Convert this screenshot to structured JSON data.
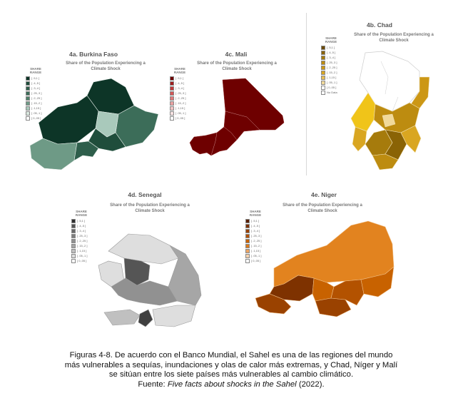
{
  "legend_title": "SHARE RANGE",
  "subtitle": "Share of the Population Experiencing a Climate Shock",
  "panels": {
    "burkina": {
      "title": "4a.  Burkina Faso",
      "legend": [
        "[ .5,1 ]",
        "[ .4,.5 ]",
        "[ .3,.4 ]",
        "[ .25,.3 ]",
        "[ .2,.25 ]",
        "[ .15,.2 ]",
        "[ .1,15 ]",
        "[ .05,.1 ]",
        "[ 0,.05 ]"
      ],
      "colors": [
        "#0d3527",
        "#1f4d3b",
        "#2e5e4b",
        "#3c6d59",
        "#4f8069",
        "#6e9a86",
        "#a9c9bb",
        "#d9e7df",
        "#ffffff"
      ]
    },
    "mali": {
      "title": "4c. Mali",
      "legend": [
        "[ .5,1 ]",
        "[ .4,.5 ]",
        "[ .3,.4 ]",
        "[ .25,.3 ]",
        "[ .2,.25 ]",
        "[ .15,.2 ]",
        "[ .1,15 ]",
        "[ .05,.1 ]",
        "[ 0,.05 ]"
      ],
      "colors": [
        "#6e0000",
        "#a11d1d",
        "#c23a3a",
        "#d45656",
        "#e07a7a",
        "#e9a0a0",
        "#f1c4c4",
        "#f8e2e2",
        "#ffffff"
      ]
    },
    "chad": {
      "title": "4b. Chad",
      "legend": [
        "[ .5,1 ]",
        "[ .4,.5 ]",
        "[ .3,.4 ]",
        "[ .25,.3 ]",
        "[ .2,.25 ]",
        "[ .15,.2 ]",
        "[ .1,15 ]",
        "[ .05,.1 ]",
        "[ 0,.05 ]",
        "No Data"
      ],
      "colors": [
        "#6b4a00",
        "#8a6305",
        "#a67b0c",
        "#bd8c10",
        "#cc9715",
        "#d9a621",
        "#e6bd55",
        "#f1d99a",
        "#ffffff",
        "#ffffff"
      ]
    },
    "senegal": {
      "title": "4d. Senegal",
      "legend": [
        "[ .5,1 ]",
        "[ .4,.5 ]",
        "[ .3,.4 ]",
        "[ .25,.3 ]",
        "[ .2,.25 ]",
        "[ .15,.2 ]",
        "[ .1,15 ]",
        "[ .05,.1 ]",
        "[ 0,.05 ]"
      ],
      "colors": [
        "#2f2f2f",
        "#555555",
        "#6a6a6a",
        "#7e7e7e",
        "#919191",
        "#a6a6a6",
        "#c0c0c0",
        "#dedede",
        "#ffffff"
      ]
    },
    "niger": {
      "title": "4e.  Niger",
      "legend": [
        "[ .5,1 ]",
        "[ .4,.5 ]",
        "[ .3,.4 ]",
        "[ .25,.3 ]",
        "[ .2,.25 ]",
        "[ .15,.2 ]",
        "[ .1,15 ]",
        "[ .05,.1 ]",
        "[ 0,.05 ]"
      ],
      "colors": [
        "#5a2000",
        "#7e3200",
        "#9a4200",
        "#b35200",
        "#c86200",
        "#dc7b1c",
        "#eca565",
        "#f6d2ad",
        "#ffffff"
      ]
    }
  },
  "caption": {
    "line1": "Figuras 4-8. De acuerdo con el Banco Mundial, el Sahel es una de las regiones del mundo",
    "line2": "más vulnerables a sequías, inundaciones y olas de calor más extremas, y Chad, Níger y Malí",
    "line3": "se sitúan entre los siete países más vulnerables al cambio climático.",
    "source_prefix": "Fuente: ",
    "source_title": "Five facts about shocks in the Sahel",
    "source_suffix": " (2022)."
  }
}
